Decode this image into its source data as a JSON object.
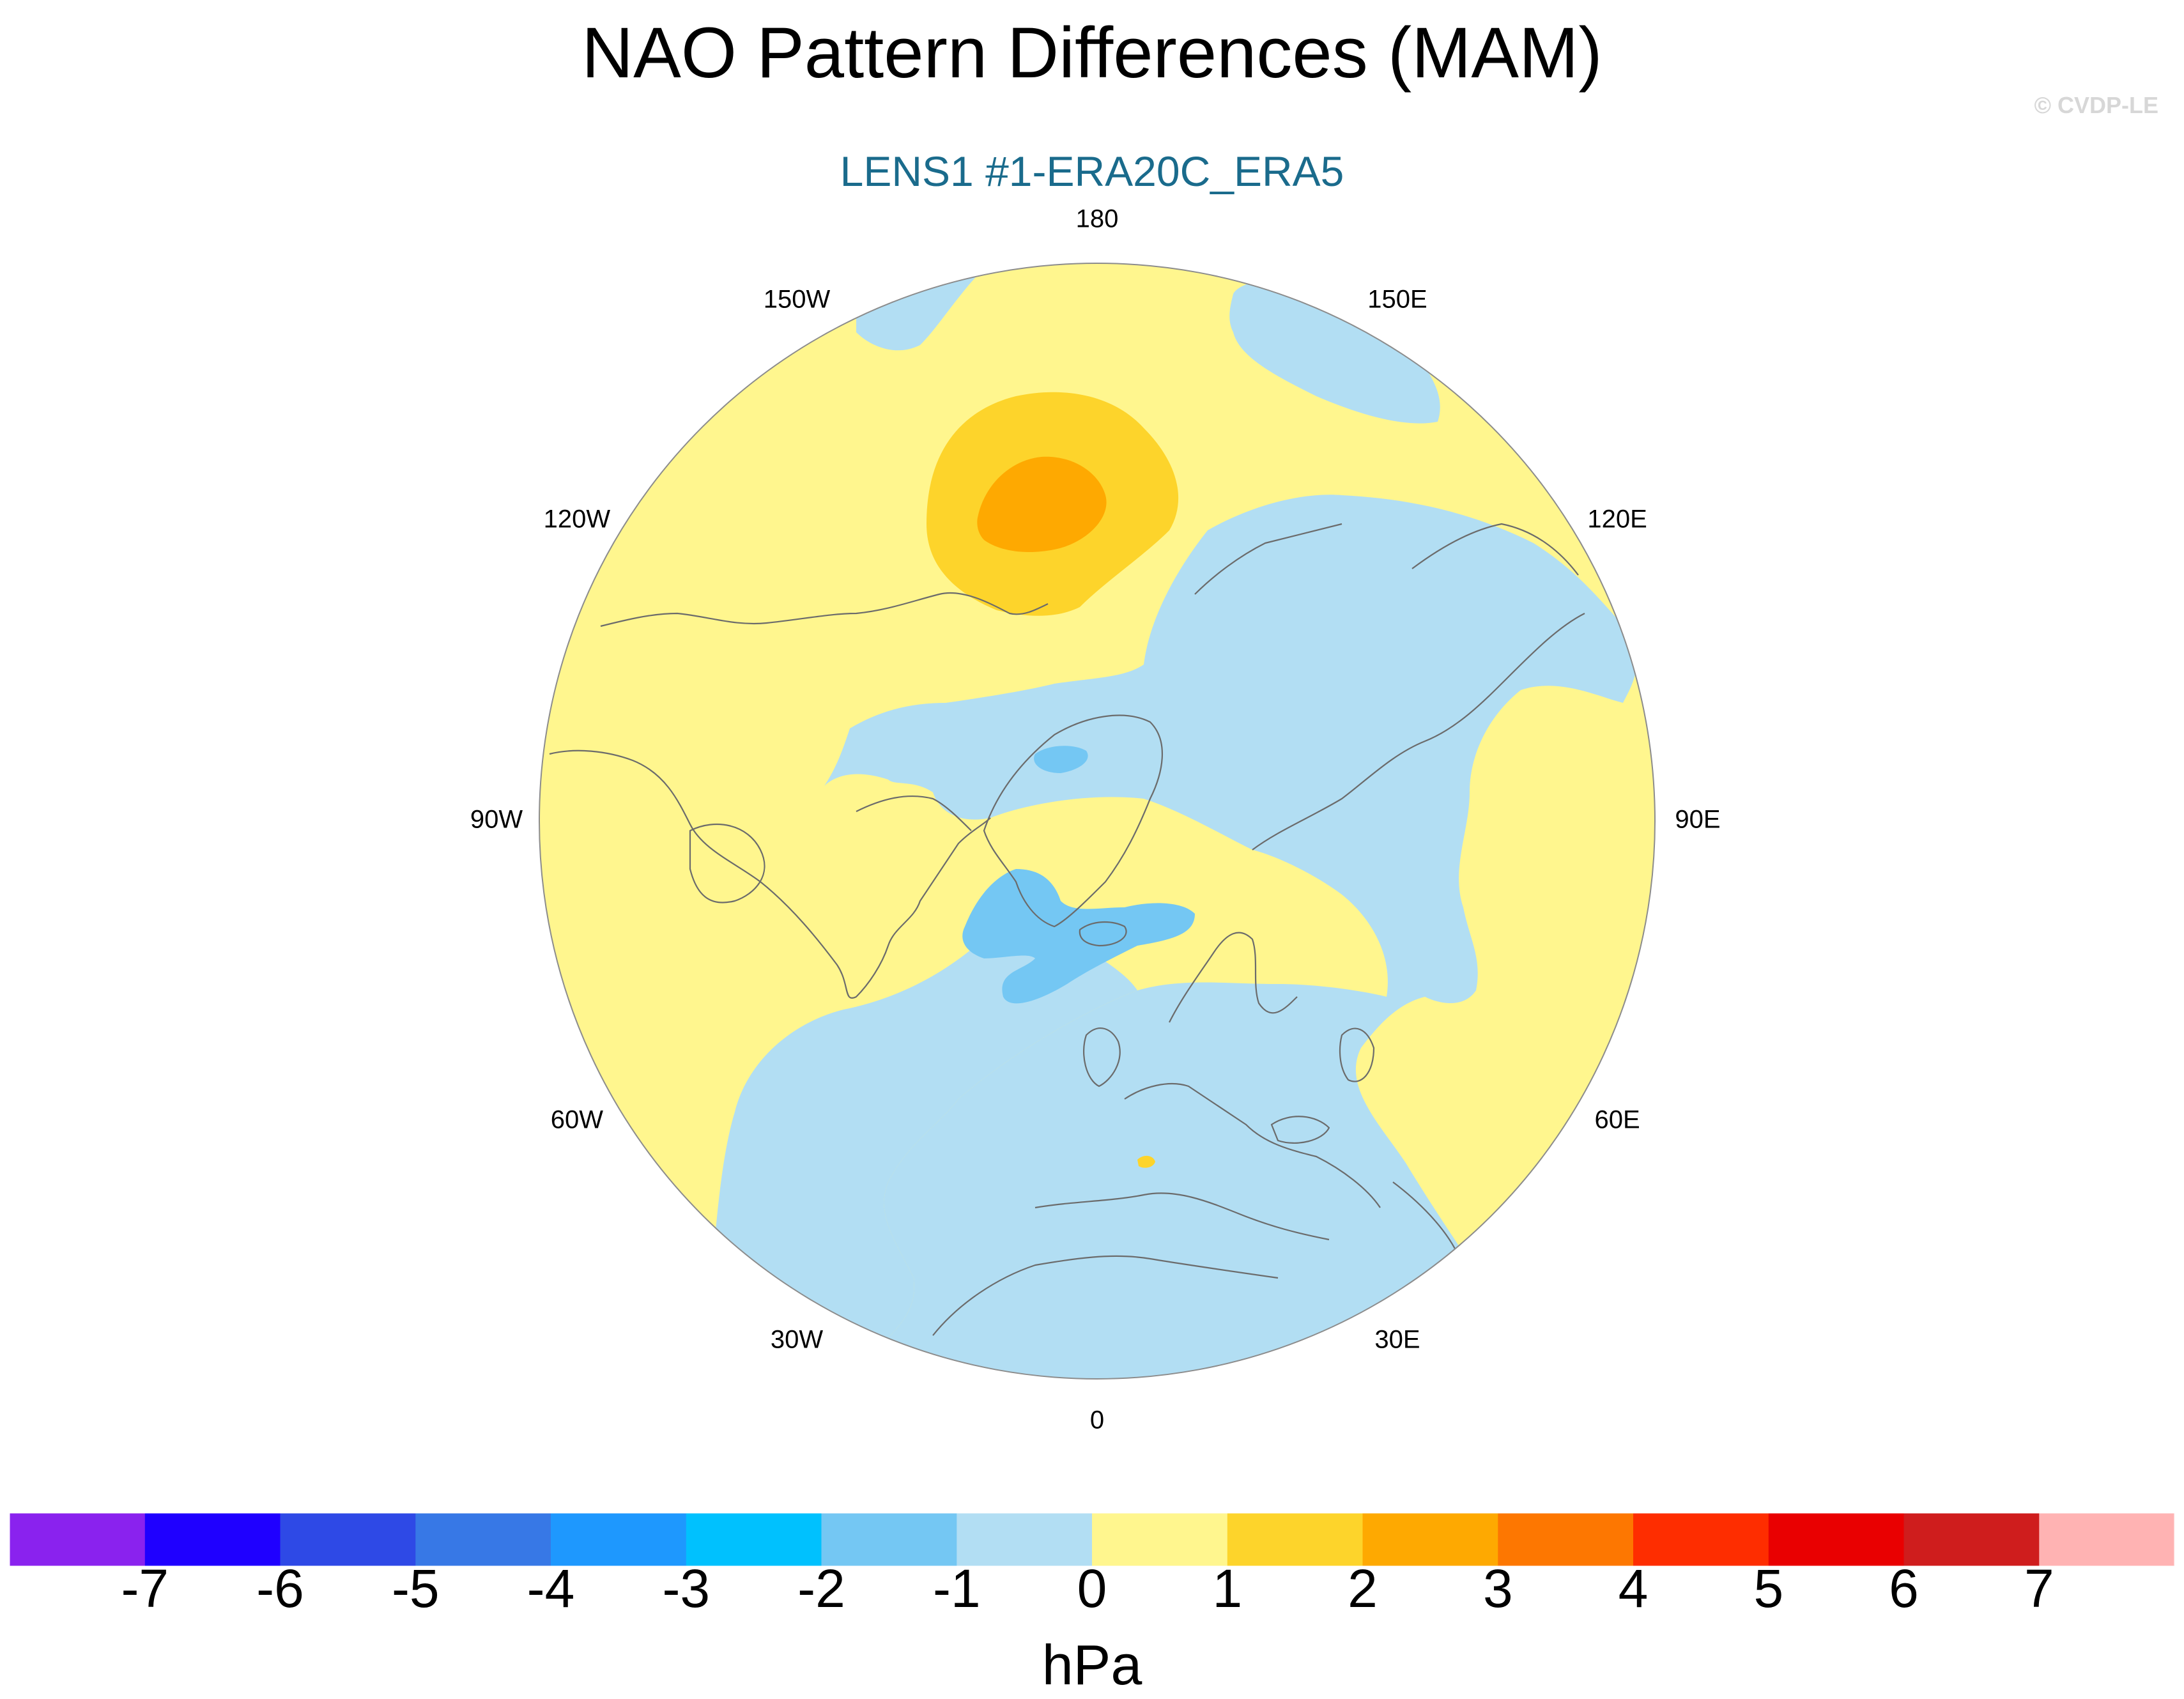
{
  "title": "NAO Pattern Differences (MAM)",
  "subtitle": "LENS1 #1-ERA20C_ERA5",
  "copyright": "© CVDP-LE",
  "map": {
    "projection": "north-polar-stereographic",
    "longitude_labels": [
      "180",
      "150E",
      "120E",
      "90E",
      "60E",
      "30E",
      "0",
      "30W",
      "60W",
      "90W",
      "120W",
      "150W"
    ],
    "longitude_values": [
      180,
      150,
      120,
      90,
      60,
      30,
      0,
      -30,
      -60,
      -90,
      -120,
      -150
    ],
    "features": [
      {
        "name": "positive-anomaly-north-pacific",
        "level_range": [
          1,
          2
        ],
        "note": "center near Alaska/Bering"
      },
      {
        "name": "core-anomaly-north-pacific",
        "level_range": [
          2,
          3
        ]
      },
      {
        "name": "negative-anomaly-arctic",
        "level_range": [
          -1,
          0
        ]
      },
      {
        "name": "negative-anomaly-greenland-iceland",
        "level_range": [
          -2,
          -1
        ]
      },
      {
        "name": "negative-anomaly-north-atlantic",
        "level_range": [
          -1,
          0
        ]
      },
      {
        "name": "positive-anomaly-europe",
        "level_range": [
          0,
          1
        ]
      }
    ]
  },
  "colorbar": {
    "units": "hPa",
    "tick_labels": [
      "-7",
      "-6",
      "-5",
      "-4",
      "-3",
      "-2",
      "-1",
      "0",
      "1",
      "2",
      "3",
      "4",
      "5",
      "6",
      "7"
    ],
    "colors": [
      "#8a22ee",
      "#1f00ff",
      "#2e49e6",
      "#3778e6",
      "#1e98fe",
      "#00c1fe",
      "#74c7f3",
      "#b2def3",
      "#fff68e",
      "#fdd42b",
      "#fea901",
      "#fd7701",
      "#fe2d00",
      "#e90001",
      "#cf1d1d",
      "#ffb3b3"
    ]
  },
  "palette": {
    "land_outline": "#6b6b6b",
    "circle_border": "#8c8c8c",
    "subtitle": "#1a6b8c"
  }
}
